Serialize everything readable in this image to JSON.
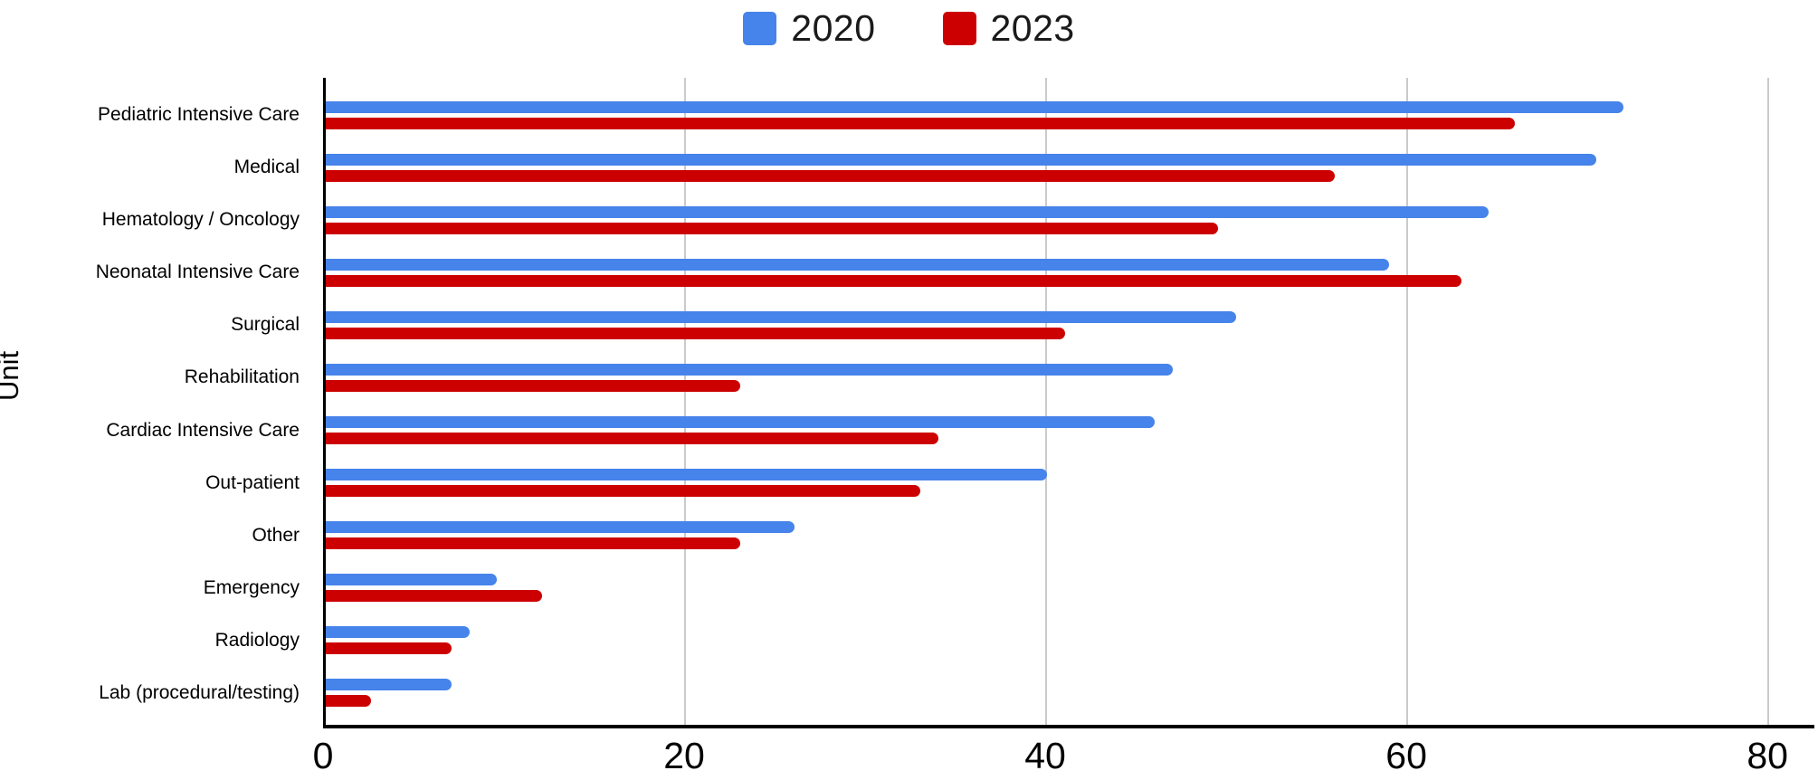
{
  "legend": {
    "items": [
      {
        "label": "2020",
        "color": "#4683ea"
      },
      {
        "label": "2023",
        "color": "#cc0000"
      }
    ]
  },
  "chart_data": {
    "type": "bar",
    "orientation": "horizontal",
    "title": "",
    "xlabel": "",
    "ylabel": "Unit",
    "categories": [
      "Pediatric Intensive Care",
      "Medical",
      "Hematology / Oncology",
      "Neonatal Intensive Care",
      "Surgical",
      "Rehabilitation",
      "Cardiac Intensive Care",
      "Out-patient",
      "Other",
      "Emergency",
      "Radiology",
      "Lab (procedural/testing)"
    ],
    "series": [
      {
        "name": "2020",
        "color": "#4683ea",
        "values": [
          72,
          70.5,
          64.5,
          59,
          50.5,
          47,
          46,
          40,
          26,
          9.5,
          8,
          7
        ]
      },
      {
        "name": "2023",
        "color": "#cc0000",
        "values": [
          66,
          56,
          49.5,
          63,
          41,
          23,
          34,
          33,
          23,
          12,
          7,
          2.5
        ]
      }
    ],
    "x_ticks": [
      0,
      20,
      40,
      60,
      80
    ],
    "xlim": [
      0,
      82.6
    ],
    "grid": "vertical-gridlines-on",
    "legend_position": "top-center",
    "axis_color": "#000000",
    "gridline_color": "#cacaca"
  }
}
